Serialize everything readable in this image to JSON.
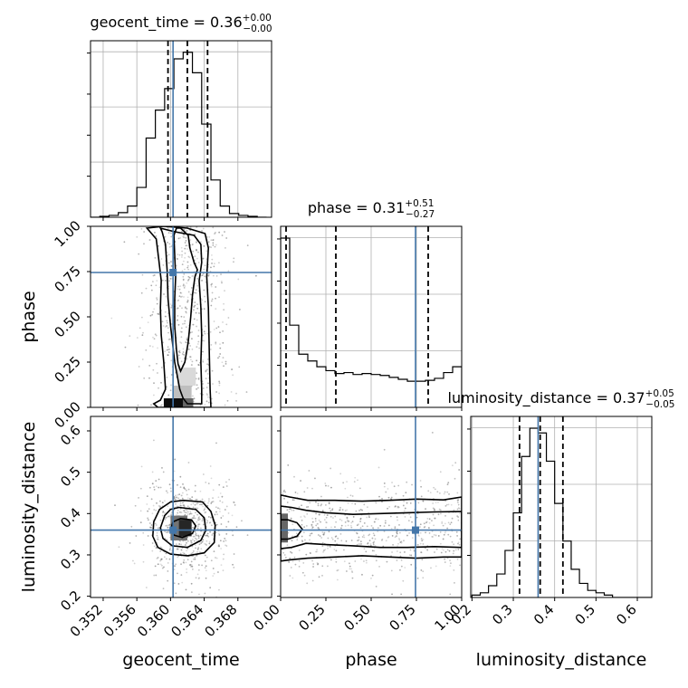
{
  "chart_data": {
    "type": "scatter",
    "variant": "corner plot",
    "grid": true,
    "colors": {
      "truth": "#4477aa",
      "line": "#000000",
      "grid": "#b0b0b0"
    },
    "parameters": [
      {
        "key": "geocent_time",
        "label": "geocent_time",
        "range": [
          0.3505,
          0.372
        ],
        "ticks": [
          0.352,
          0.356,
          0.36,
          0.364,
          0.368
        ],
        "tick_labels": [
          "0.352",
          "0.356",
          "0.360",
          "0.364",
          "0.368"
        ],
        "truth": 0.3603,
        "quantiles": [
          0.3597,
          0.362,
          0.3644
        ],
        "title": {
          "name": "geocent_time = 0.36",
          "plus": "+0.00",
          "minus": "−0.00"
        },
        "hist_edges_start": 0.3505,
        "hist_bin_width": 0.0011,
        "hist_counts": [
          0,
          1,
          2,
          5,
          12,
          32,
          85,
          115,
          138,
          170,
          177,
          155,
          100,
          40,
          12,
          4,
          2,
          1,
          0
        ]
      },
      {
        "key": "phase",
        "label": "phase",
        "range": [
          0.0,
          1.0
        ],
        "ticks": [
          0.0,
          0.25,
          0.5,
          0.75,
          1.0
        ],
        "tick_labels": [
          "0.00",
          "0.25",
          "0.50",
          "0.75",
          "1.00"
        ],
        "truth": 0.745,
        "quantiles": [
          0.03,
          0.305,
          0.815
        ],
        "title": {
          "name": "phase = 0.31",
          "plus": "+0.51",
          "minus": "−0.27"
        },
        "hist_edges_start": 0.0,
        "hist_bin_width": 0.05,
        "hist_counts": [
          175,
          85,
          55,
          48,
          42,
          38,
          35,
          36,
          34,
          35,
          34,
          33,
          31,
          29,
          27,
          27,
          28,
          30,
          36,
          42
        ]
      },
      {
        "key": "luminosity_distance",
        "label": "luminosity_distance",
        "range": [
          0.197,
          0.635
        ],
        "ticks": [
          0.2,
          0.3,
          0.4,
          0.5,
          0.6
        ],
        "tick_labels": [
          "0.2",
          "0.3",
          "0.4",
          "0.5",
          "0.6"
        ],
        "truth": 0.36,
        "quantiles": [
          0.315,
          0.365,
          0.42
        ],
        "title": {
          "name": "luminosity_distance = 0.37",
          "plus": "+0.05",
          "minus": "−0.05"
        },
        "hist_edges_start": 0.2,
        "hist_bin_width": 0.02,
        "hist_counts": [
          1,
          2,
          5,
          10,
          20,
          36,
          60,
          72,
          70,
          58,
          40,
          24,
          12,
          6,
          3,
          2,
          1,
          0,
          0,
          0,
          0,
          0
        ]
      }
    ],
    "pair_panels": [
      {
        "x": "geocent_time",
        "y": "phase",
        "contours": [
          [
            [
              0.3612,
              0.99
            ],
            [
              0.3621,
              0.95
            ],
            [
              0.3623,
              0.88
            ],
            [
              0.3628,
              0.8
            ],
            [
              0.3632,
              0.76
            ],
            [
              0.3629,
              0.72
            ],
            [
              0.3626,
              0.62
            ],
            [
              0.3624,
              0.5
            ],
            [
              0.3621,
              0.36
            ],
            [
              0.3617,
              0.25
            ],
            [
              0.3612,
              0.2
            ],
            [
              0.3609,
              0.24
            ],
            [
              0.3607,
              0.32
            ],
            [
              0.3605,
              0.45
            ],
            [
              0.3605,
              0.6
            ],
            [
              0.3606,
              0.72
            ],
            [
              0.3605,
              0.84
            ],
            [
              0.3604,
              0.95
            ],
            [
              0.3607,
              0.99
            ]
          ],
          [
            [
              0.3588,
              0.99
            ],
            [
              0.3605,
              0.97
            ],
            [
              0.3628,
              0.95
            ],
            [
              0.3636,
              0.9
            ],
            [
              0.3637,
              0.8
            ],
            [
              0.3634,
              0.7
            ],
            [
              0.3636,
              0.55
            ],
            [
              0.3637,
              0.4
            ],
            [
              0.3636,
              0.25
            ],
            [
              0.3637,
              0.1
            ],
            [
              0.3637,
              0.02
            ],
            [
              0.362,
              0.02
            ],
            [
              0.3615,
              0.05
            ],
            [
              0.3611,
              0.1
            ],
            [
              0.3605,
              0.25
            ],
            [
              0.36,
              0.45
            ],
            [
              0.3597,
              0.6
            ],
            [
              0.3596,
              0.75
            ],
            [
              0.3594,
              0.9
            ],
            [
              0.359,
              0.97
            ]
          ],
          [
            [
              0.3572,
              0.99
            ],
            [
              0.3592,
              1.0
            ],
            [
              0.362,
              0.99
            ],
            [
              0.3641,
              0.96
            ],
            [
              0.3645,
              0.88
            ],
            [
              0.3643,
              0.72
            ],
            [
              0.3645,
              0.55
            ],
            [
              0.3646,
              0.3
            ],
            [
              0.3647,
              0.1
            ],
            [
              0.3648,
              0.0
            ],
            [
              0.3585,
              0.0
            ],
            [
              0.358,
              0.02
            ],
            [
              0.3588,
              0.04
            ],
            [
              0.3594,
              0.1
            ],
            [
              0.3592,
              0.25
            ],
            [
              0.3589,
              0.4
            ],
            [
              0.3588,
              0.55
            ],
            [
              0.3589,
              0.7
            ],
            [
              0.3586,
              0.82
            ],
            [
              0.3583,
              0.93
            ]
          ]
        ],
        "dark_cells": [
          {
            "x": [
              0.3592,
              0.3615
            ],
            "y": [
              0.0,
              0.05
            ],
            "shade": 0.95
          },
          {
            "x": [
              0.3615,
              0.3627
            ],
            "y": [
              0.0,
              0.05
            ],
            "shade": 0.6
          },
          {
            "x": [
              0.3603,
              0.3625
            ],
            "y": [
              0.05,
              0.12
            ],
            "shade": 0.25
          },
          {
            "x": [
              0.3608,
              0.363
            ],
            "y": [
              0.12,
              0.22
            ],
            "shade": 0.15
          }
        ]
      },
      {
        "x": "geocent_time",
        "y": "luminosity_distance",
        "contours": [
          [
            [
              0.3612,
              0.388
            ],
            [
              0.3625,
              0.385
            ],
            [
              0.363,
              0.37
            ],
            [
              0.3626,
              0.352
            ],
            [
              0.3614,
              0.342
            ],
            [
              0.3604,
              0.348
            ],
            [
              0.36,
              0.362
            ],
            [
              0.3603,
              0.38
            ]
          ],
          [
            [
              0.361,
              0.415
            ],
            [
              0.363,
              0.41
            ],
            [
              0.364,
              0.39
            ],
            [
              0.3642,
              0.36
            ],
            [
              0.3636,
              0.335
            ],
            [
              0.362,
              0.318
            ],
            [
              0.3602,
              0.322
            ],
            [
              0.3591,
              0.34
            ],
            [
              0.3588,
              0.365
            ],
            [
              0.3593,
              0.395
            ],
            [
              0.36,
              0.41
            ]
          ],
          [
            [
              0.3615,
              0.432
            ],
            [
              0.3638,
              0.428
            ],
            [
              0.3648,
              0.405
            ],
            [
              0.3653,
              0.372
            ],
            [
              0.3652,
              0.33
            ],
            [
              0.364,
              0.305
            ],
            [
              0.362,
              0.298
            ],
            [
              0.36,
              0.302
            ],
            [
              0.3585,
              0.318
            ],
            [
              0.3579,
              0.345
            ],
            [
              0.358,
              0.38
            ],
            [
              0.3587,
              0.41
            ],
            [
              0.36,
              0.428
            ]
          ]
        ],
        "dark_cells": [
          {
            "x": [
              0.36,
              0.362
            ],
            "y": [
              0.335,
              0.395
            ],
            "shade": 0.55
          },
          {
            "x": [
              0.361,
              0.3625
            ],
            "y": [
              0.345,
              0.385
            ],
            "shade": 0.85
          }
        ]
      },
      {
        "x": "phase",
        "y": "luminosity_distance",
        "contours": [
          [
            [
              0.0,
              0.385
            ],
            [
              0.04,
              0.385
            ],
            [
              0.09,
              0.378
            ],
            [
              0.12,
              0.362
            ],
            [
              0.09,
              0.345
            ],
            [
              0.04,
              0.338
            ],
            [
              0.0,
              0.338
            ]
          ],
          [
            [
              0.0,
              0.418
            ],
            [
              0.06,
              0.415
            ],
            [
              0.14,
              0.408
            ],
            [
              0.25,
              0.402
            ],
            [
              0.4,
              0.398
            ],
            [
              0.55,
              0.4
            ],
            [
              0.7,
              0.402
            ],
            [
              0.85,
              0.404
            ],
            [
              1.0,
              0.405
            ],
            [
              1.0,
              0.318
            ],
            [
              0.85,
              0.32
            ],
            [
              0.7,
              0.318
            ],
            [
              0.55,
              0.318
            ],
            [
              0.4,
              0.322
            ],
            [
              0.25,
              0.325
            ],
            [
              0.14,
              0.328
            ],
            [
              0.06,
              0.318
            ],
            [
              0.0,
              0.315
            ]
          ],
          [
            [
              0.0,
              0.445
            ],
            [
              0.05,
              0.44
            ],
            [
              0.15,
              0.432
            ],
            [
              0.3,
              0.432
            ],
            [
              0.45,
              0.43
            ],
            [
              0.6,
              0.432
            ],
            [
              0.75,
              0.435
            ],
            [
              0.9,
              0.433
            ],
            [
              1.0,
              0.44
            ],
            [
              1.0,
              0.295
            ],
            [
              0.9,
              0.295
            ],
            [
              0.75,
              0.292
            ],
            [
              0.6,
              0.295
            ],
            [
              0.45,
              0.298
            ],
            [
              0.3,
              0.295
            ],
            [
              0.15,
              0.292
            ],
            [
              0.05,
              0.288
            ],
            [
              0.0,
              0.285
            ]
          ]
        ],
        "dark_cells": [
          {
            "x": [
              0.0,
              0.04
            ],
            "y": [
              0.33,
              0.4
            ],
            "shade": 0.6
          }
        ]
      }
    ]
  }
}
